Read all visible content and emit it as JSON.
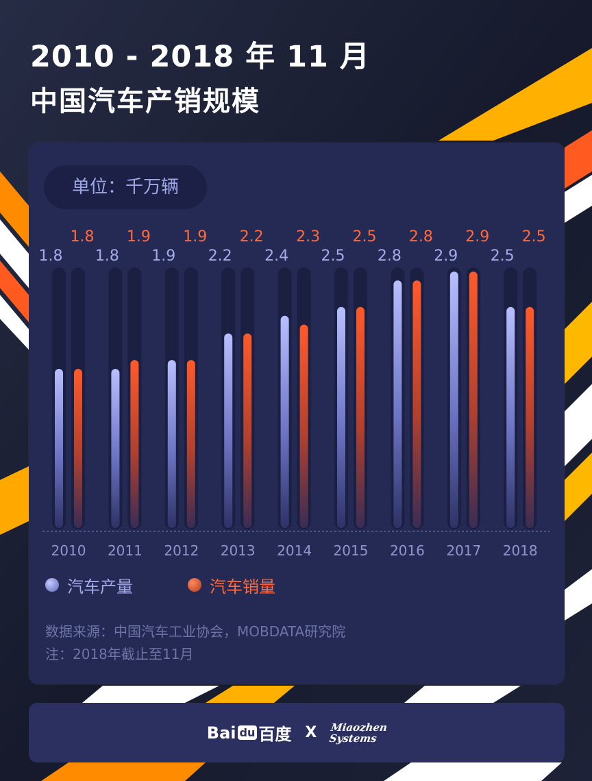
{
  "header": {
    "title_line1": "2010 - 2018 年 11 月",
    "title_line2": "中国汽车产销规模"
  },
  "unit_label": "单位：千万辆",
  "legend": {
    "production": "汽车产量",
    "sales": "汽车销量"
  },
  "footnotes": {
    "source": "数据来源：中国汽车工业协会，MOBDATA研究院",
    "note": "注：2018年截止至11月"
  },
  "footer": {
    "baidu_text_a": "Bai",
    "baidu_text_b": "du",
    "baidu_text_c": "百度",
    "separator": "X",
    "miaozhen_line1": "Miaozhen",
    "miaozhen_line2": "Systems"
  },
  "colors": {
    "background": "#1a1f36",
    "card": "#252a55",
    "production": "#9aa2f0",
    "sales": "#ff5a2a",
    "accent_orange": "#ff8a00",
    "accent_yellow": "#ffc300"
  },
  "chart_data": {
    "type": "bar",
    "categories": [
      "2010",
      "2011",
      "2012",
      "2013",
      "2014",
      "2015",
      "2016",
      "2017",
      "2018"
    ],
    "series": [
      {
        "name": "汽车产量",
        "values": [
          1.8,
          1.8,
          1.9,
          2.2,
          2.4,
          2.5,
          2.8,
          2.9,
          2.5
        ]
      },
      {
        "name": "汽车销量",
        "values": [
          1.8,
          1.9,
          1.9,
          2.2,
          2.3,
          2.5,
          2.8,
          2.9,
          2.5
        ]
      }
    ],
    "value_labels": {
      "production": [
        "1.8",
        "1.8",
        "1.9",
        "2.2",
        "2.4",
        "2.5",
        "2.8",
        "2.9",
        "2.5"
      ],
      "sales": [
        "1.8",
        "1.9",
        "1.9",
        "2.2",
        "2.3",
        "2.5",
        "2.8",
        "2.9",
        "2.5"
      ]
    },
    "ylim": [
      0,
      3
    ],
    "grid": false,
    "legend_position": "bottom-left"
  }
}
